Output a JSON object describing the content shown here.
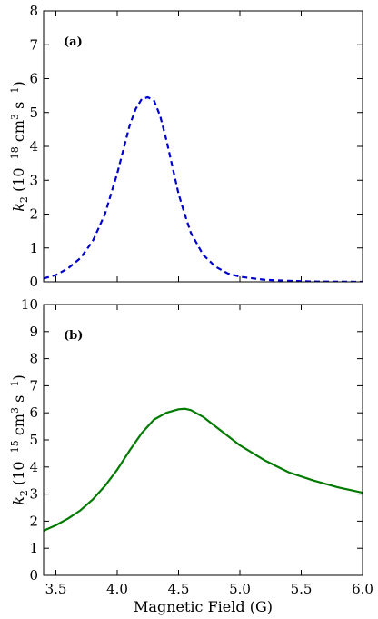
{
  "chart_data": [
    {
      "type": "line",
      "panel_label": "(a)",
      "xlabel": "",
      "ylabel": {
        "sym": "k",
        "sub": "2",
        "pre": " (10",
        "exp": "−18",
        "mid": " cm",
        "exp2": "3",
        "post": " s",
        "exp3": "−1",
        "end": ")"
      },
      "xlim": [
        3.4,
        6.0
      ],
      "ylim": [
        0,
        8
      ],
      "xticks": [
        "3.5",
        "4.0",
        "4.5",
        "5.0",
        "5.5",
        "6.0"
      ],
      "yticks": [
        "0",
        "1",
        "2",
        "3",
        "4",
        "5",
        "6",
        "7",
        "8"
      ],
      "series": [
        {
          "color": "#0000cc",
          "style": "dashed",
          "x": [
            3.4,
            3.5,
            3.6,
            3.7,
            3.8,
            3.9,
            4.0,
            4.05,
            4.1,
            4.15,
            4.2,
            4.25,
            4.3,
            4.35,
            4.4,
            4.45,
            4.5,
            4.55,
            4.6,
            4.7,
            4.8,
            4.9,
            5.0,
            5.2,
            5.4,
            5.6,
            6.0
          ],
          "y": [
            0.1,
            0.2,
            0.4,
            0.7,
            1.2,
            2.0,
            3.2,
            3.9,
            4.6,
            5.1,
            5.4,
            5.45,
            5.35,
            4.9,
            4.2,
            3.4,
            2.6,
            2.0,
            1.45,
            0.8,
            0.45,
            0.25,
            0.15,
            0.06,
            0.03,
            0.01,
            0.0
          ]
        }
      ]
    },
    {
      "type": "line",
      "panel_label": "(b)",
      "xlabel": "Magnetic Field (G)",
      "ylabel": {
        "sym": "k",
        "sub": "2",
        "pre": " (10",
        "exp": "−15",
        "mid": " cm",
        "exp2": "3",
        "post": " s",
        "exp3": "−1",
        "end": ")"
      },
      "xlim": [
        3.4,
        6.0
      ],
      "ylim": [
        0,
        10
      ],
      "xticks": [
        "3.5",
        "4.0",
        "4.5",
        "5.0",
        "5.5",
        "6.0"
      ],
      "yticks": [
        "0",
        "1",
        "2",
        "3",
        "4",
        "5",
        "6",
        "7",
        "8",
        "9",
        "10"
      ],
      "series": [
        {
          "color": "#007a00",
          "style": "solid",
          "x": [
            3.4,
            3.5,
            3.6,
            3.7,
            3.8,
            3.9,
            4.0,
            4.1,
            4.2,
            4.3,
            4.4,
            4.5,
            4.55,
            4.6,
            4.7,
            4.8,
            4.9,
            5.0,
            5.2,
            5.4,
            5.6,
            5.8,
            6.0
          ],
          "y": [
            1.65,
            1.85,
            2.1,
            2.4,
            2.8,
            3.3,
            3.9,
            4.6,
            5.25,
            5.75,
            6.0,
            6.13,
            6.15,
            6.1,
            5.85,
            5.5,
            5.15,
            4.8,
            4.25,
            3.8,
            3.5,
            3.25,
            3.05
          ]
        }
      ]
    }
  ]
}
